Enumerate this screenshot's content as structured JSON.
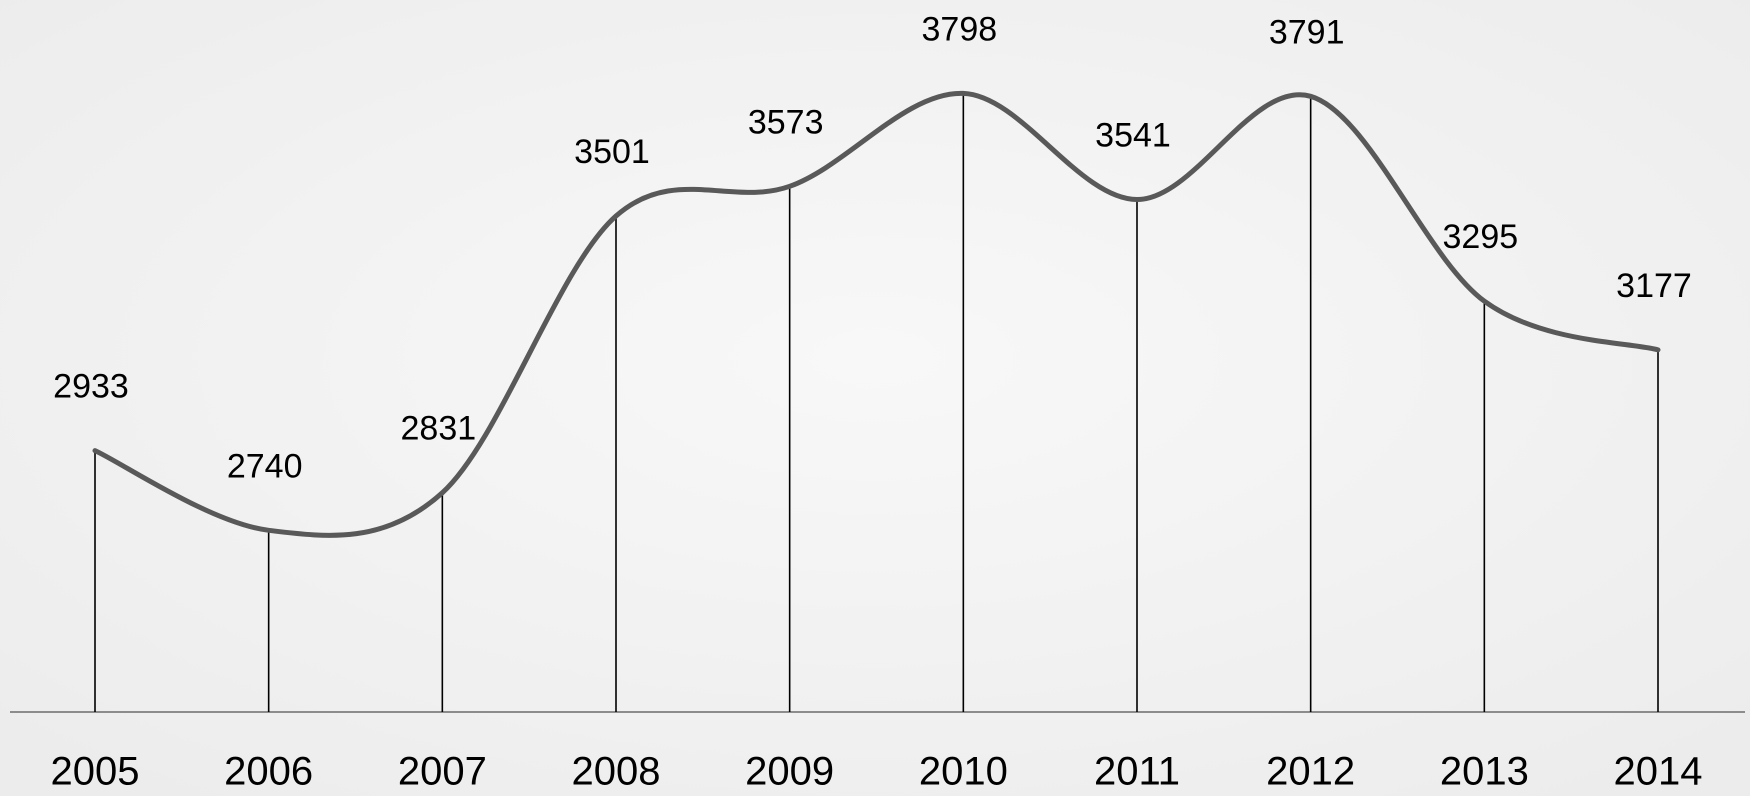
{
  "chart_data": {
    "type": "line",
    "categories": [
      "2005",
      "2006",
      "2007",
      "2008",
      "2009",
      "2010",
      "2011",
      "2012",
      "2013",
      "2014"
    ],
    "values": [
      2933,
      2740,
      2831,
      3501,
      3573,
      3798,
      3541,
      3791,
      3295,
      3177
    ],
    "color": "#595959",
    "ylim": [
      2300,
      4000
    ],
    "drop_lines": true
  }
}
